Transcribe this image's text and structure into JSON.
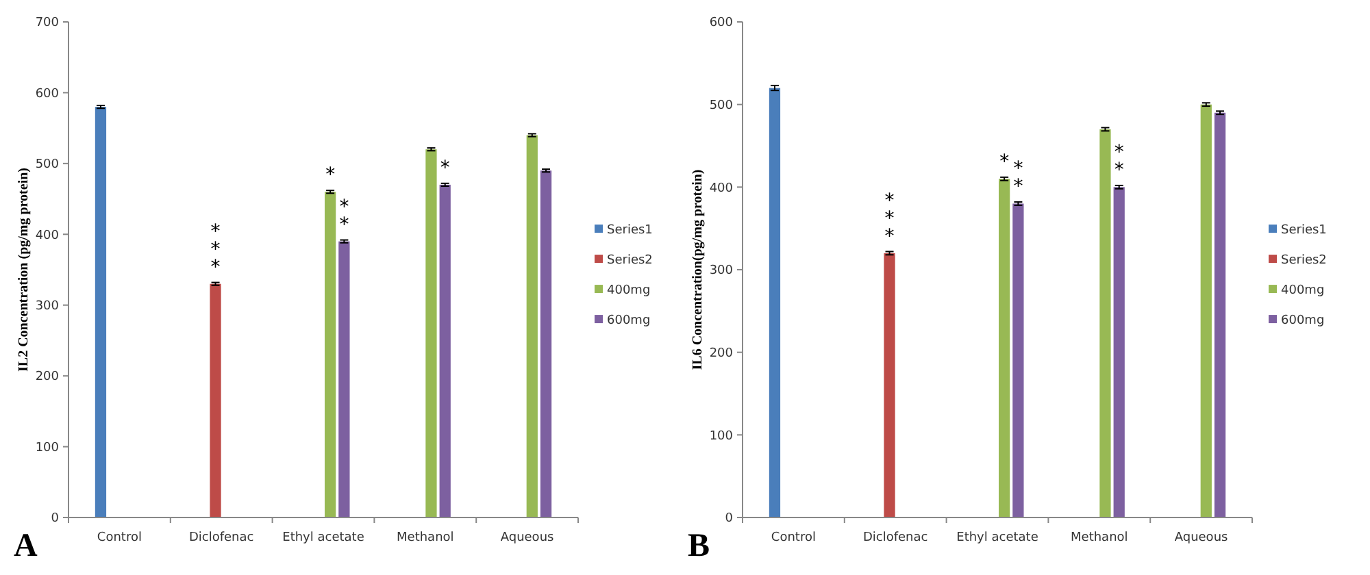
{
  "chart_data": [
    {
      "type": "bar",
      "ylabel": "IL2 Concentration (pg/mg protein)",
      "categories": [
        "Control",
        "Diclofenac",
        "Ethyl acetate",
        "Methanol",
        "Aqueous"
      ],
      "series": [
        {
          "name": "Series1",
          "color": "#4a7ebb",
          "values": [
            580,
            null,
            null,
            null,
            null
          ],
          "errors": [
            2,
            null,
            null,
            null,
            null
          ]
        },
        {
          "name": "Series2",
          "color": "#be4b48",
          "values": [
            null,
            330,
            null,
            null,
            null
          ],
          "errors": [
            null,
            2,
            null,
            null,
            null
          ]
        },
        {
          "name": "400mg",
          "color": "#98b954",
          "values": [
            null,
            null,
            460,
            520,
            540
          ],
          "errors": [
            null,
            null,
            2,
            2,
            2
          ]
        },
        {
          "name": "600mg",
          "color": "#7d60a0",
          "values": [
            null,
            null,
            390,
            470,
            490
          ],
          "errors": [
            null,
            null,
            2,
            2,
            2
          ]
        }
      ],
      "ylim": [
        0,
        700
      ],
      "yticks": [
        0,
        100,
        200,
        300,
        400,
        500,
        600,
        700
      ],
      "legend": "right",
      "annotations": [
        "A",
        {
          "text": "***",
          "x": "Diclofenac",
          "y": 330
        },
        {
          "text": "*",
          "x": "Ethyl acetate",
          "y": 460
        },
        {
          "text": "**",
          "x": "Ethyl acetate",
          "y": 390
        },
        {
          "text": "*",
          "x": "Methanol",
          "y": 470
        }
      ]
    },
    {
      "type": "bar",
      "ylabel": "IL6 Concentration(pg/mg protein)",
      "categories": [
        "Control",
        "Diclofenac",
        "Ethyl acetate",
        "Methanol",
        "Aqueous"
      ],
      "series": [
        {
          "name": "Series1",
          "color": "#4a7ebb",
          "values": [
            520,
            null,
            null,
            null,
            null
          ],
          "errors": [
            3,
            null,
            null,
            null,
            null
          ]
        },
        {
          "name": "Series2",
          "color": "#be4b48",
          "values": [
            null,
            320,
            null,
            null,
            null
          ],
          "errors": [
            null,
            2,
            null,
            null,
            null
          ]
        },
        {
          "name": "400mg",
          "color": "#98b954",
          "values": [
            null,
            null,
            410,
            470,
            500
          ],
          "errors": [
            null,
            null,
            2,
            2,
            2
          ]
        },
        {
          "name": "600mg",
          "color": "#7d60a0",
          "values": [
            null,
            null,
            380,
            400,
            490
          ],
          "errors": [
            null,
            null,
            2,
            2,
            2
          ]
        }
      ],
      "ylim": [
        0,
        600
      ],
      "yticks": [
        0,
        100,
        200,
        300,
        400,
        500,
        600
      ],
      "legend": "right",
      "annotations": [
        "B",
        {
          "text": "***",
          "x": "Diclofenac",
          "y": 320
        },
        {
          "text": "*",
          "x": "Ethyl acetate",
          "y": 410
        },
        {
          "text": "**",
          "x": "Ethyl acetate",
          "y": 380
        },
        {
          "text": "**",
          "x": "Methanol",
          "y": 400
        }
      ]
    }
  ]
}
